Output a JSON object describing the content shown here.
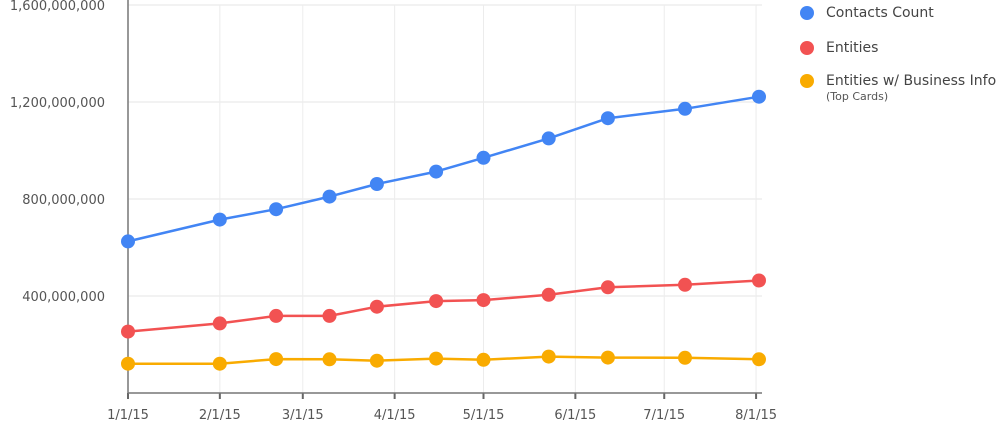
{
  "chart_data": {
    "type": "line",
    "y_ticks": [
      0,
      400000000,
      800000000,
      1200000000,
      1600000000
    ],
    "y_tick_labels": [
      "",
      "400,000,000",
      "800,000,000",
      "1,200,000,000",
      "1,600,000,000"
    ],
    "ylim": [
      0,
      1600000000
    ],
    "x_ticks": [
      "2015-01-01",
      "2015-02-01",
      "2015-03-01",
      "2015-04-01",
      "2015-05-01",
      "2015-06-01",
      "2015-07-01",
      "2015-08-01"
    ],
    "x_tick_labels": [
      "1/1/15",
      "2/1/15",
      "3/1/15",
      "4/1/15",
      "5/1/15",
      "6/1/15",
      "7/1/15",
      "8/1/15"
    ],
    "xlim": [
      "2015-01-01",
      "2015-08-03"
    ],
    "x": [
      "2015-01-01",
      "2015-02-01",
      "2015-02-20",
      "2015-03-10",
      "2015-03-26",
      "2015-04-15",
      "2015-05-01",
      "2015-05-23",
      "2015-06-12",
      "2015-07-08",
      "2015-08-02"
    ],
    "series": [
      {
        "name": "Contacts Count",
        "color": "#4285f4",
        "values": [
          625000000,
          715000000,
          758000000,
          810000000,
          862000000,
          913000000,
          970000000,
          1050000000,
          1133000000,
          1172000000,
          1222000000
        ]
      },
      {
        "name": "Entities",
        "color": "#f25252",
        "values": [
          253000000,
          287000000,
          318000000,
          318000000,
          356000000,
          379000000,
          383000000,
          405000000,
          436000000,
          446000000,
          464000000
        ]
      },
      {
        "name": "Entities w/ Business Info",
        "subtitle": "(Top Cards)",
        "color": "#f9ab00",
        "values": [
          121000000,
          121000000,
          140000000,
          139000000,
          133000000,
          142000000,
          137000000,
          150000000,
          146000000,
          145000000,
          139000000
        ]
      }
    ],
    "grid": true,
    "legend_position": "right"
  }
}
